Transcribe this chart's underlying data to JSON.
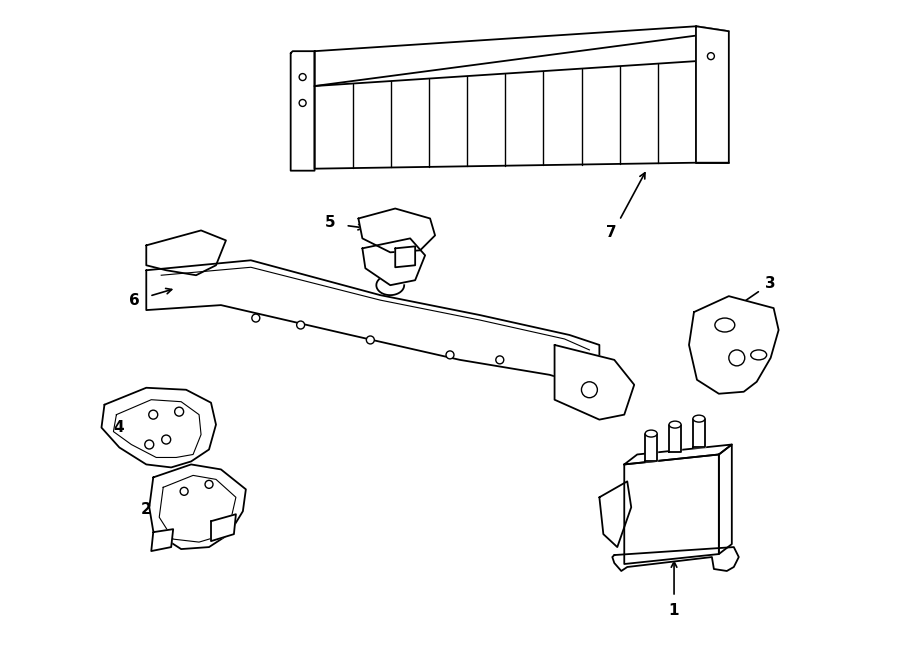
{
  "background_color": "#ffffff",
  "line_color": "#000000",
  "lw": 1.3,
  "fig_width": 9.0,
  "fig_height": 6.61,
  "dpi": 100
}
